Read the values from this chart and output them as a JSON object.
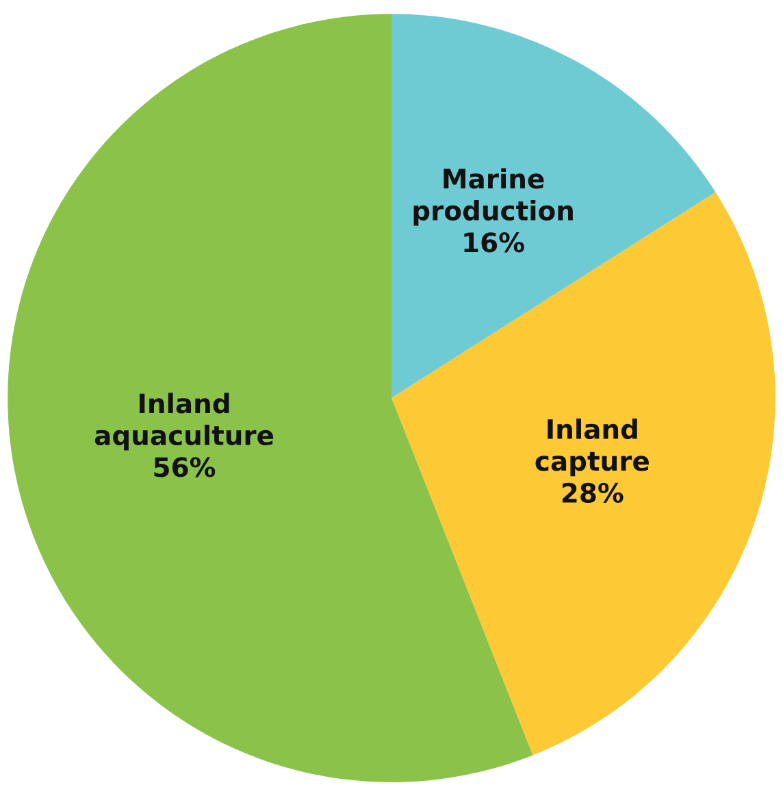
{
  "chart_data": {
    "type": "pie",
    "categories": [
      "Marine production",
      "Inland capture",
      "Inland aquaculture"
    ],
    "values": [
      16,
      28,
      56
    ],
    "value_labels": [
      "16%",
      "28%",
      "56%"
    ],
    "colors": [
      "#6ecbd3",
      "#fdc934",
      "#8bc34a"
    ],
    "legend": false
  }
}
